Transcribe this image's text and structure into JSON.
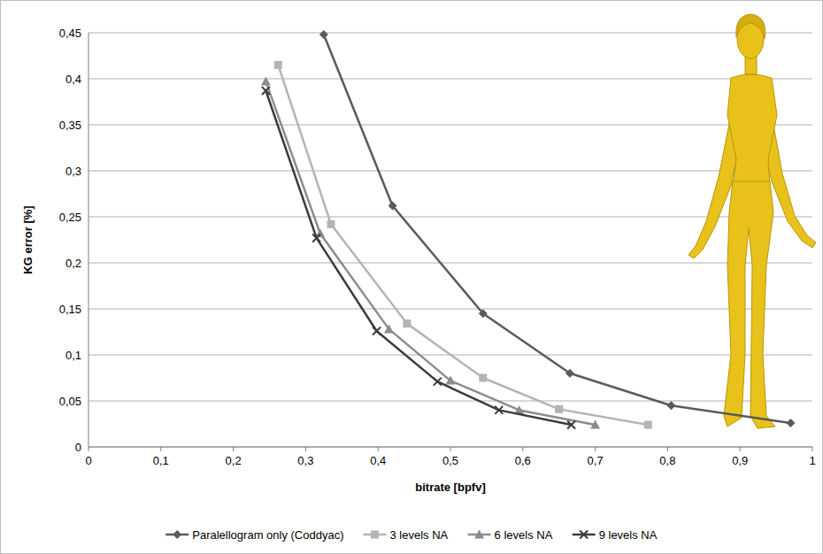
{
  "chart_data": {
    "type": "line",
    "x_label": "bitrate [bpfv]",
    "y_label": "KG error [%]",
    "xlim": [
      0,
      1
    ],
    "ylim": [
      0,
      0.45
    ],
    "xticks": [
      0,
      {
        "value": 0.1,
        "label": "0,1"
      },
      {
        "value": 0.2,
        "label": "0,2"
      },
      {
        "value": 0.3,
        "label": "0,3"
      },
      {
        "value": 0.4,
        "label": "0,4"
      },
      {
        "value": 0.5,
        "label": "0,5"
      },
      {
        "value": 0.6,
        "label": "0,6"
      },
      {
        "value": 0.7,
        "label": "0,7"
      },
      {
        "value": 0.8,
        "label": "0,8"
      },
      {
        "value": 0.9,
        "label": "0,9"
      },
      1
    ],
    "yticks": [
      0,
      {
        "value": 0.05,
        "label": "0,05"
      },
      {
        "value": 0.1,
        "label": "0,1"
      },
      {
        "value": 0.15,
        "label": "0,15"
      },
      {
        "value": 0.2,
        "label": "0,2"
      },
      {
        "value": 0.25,
        "label": "0,25"
      },
      {
        "value": 0.3,
        "label": "0,3"
      },
      {
        "value": 0.35,
        "label": "0,35"
      },
      {
        "value": 0.4,
        "label": "0,4"
      },
      {
        "value": 0.45,
        "label": "0,45"
      }
    ],
    "grid": true,
    "legend": "bottom",
    "series": [
      {
        "name": "Paralellogram only (Coddyac)",
        "color": "#5a5a5a",
        "marker": "diamond",
        "x": [
          0.325,
          0.42,
          0.545,
          0.665,
          0.805,
          0.97
        ],
        "values": [
          0.448,
          0.262,
          0.145,
          0.08,
          0.045,
          0.026
        ]
      },
      {
        "name": "3 levels NA",
        "color": "#b4b4b4",
        "marker": "square",
        "x": [
          0.262,
          0.335,
          0.44,
          0.545,
          0.65,
          0.773
        ],
        "values": [
          0.415,
          0.242,
          0.134,
          0.075,
          0.041,
          0.024
        ]
      },
      {
        "name": "6 levels NA",
        "color": "#8c8c8c",
        "marker": "triangle",
        "x": [
          0.245,
          0.32,
          0.415,
          0.5,
          0.595,
          0.7
        ],
        "values": [
          0.397,
          0.232,
          0.128,
          0.072,
          0.04,
          0.024
        ]
      },
      {
        "name": "9 levels NA",
        "color": "#3c3c3c",
        "marker": "x",
        "x": [
          0.245,
          0.315,
          0.398,
          0.482,
          0.567,
          0.667
        ],
        "values": [
          0.387,
          0.227,
          0.126,
          0.071,
          0.04,
          0.024
        ]
      }
    ]
  }
}
